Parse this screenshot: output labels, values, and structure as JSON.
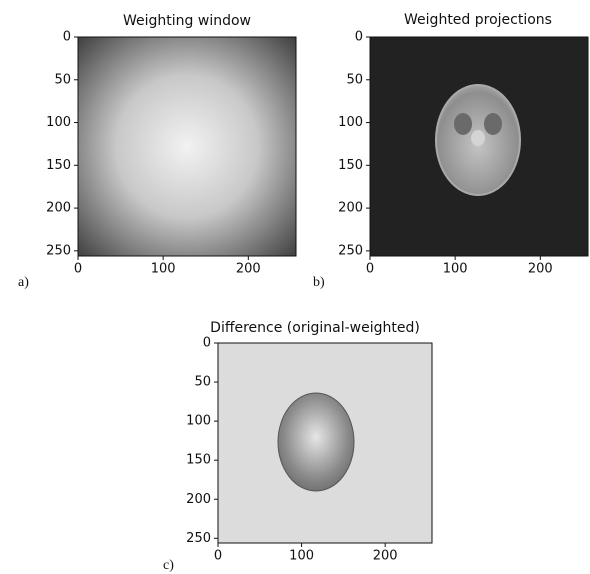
{
  "chart_data": [
    {
      "type": "image",
      "title": "Weighting window",
      "panel_label": "a)",
      "xlim": [
        0,
        256
      ],
      "ylim": [
        256,
        0
      ],
      "xticks": [
        0,
        100,
        200
      ],
      "yticks": [
        0,
        50,
        100,
        150,
        200,
        250
      ]
    },
    {
      "type": "image",
      "title": "Weighted projections",
      "panel_label": "b)",
      "xlim": [
        0,
        256
      ],
      "ylim": [
        256,
        0
      ],
      "xticks": [
        0,
        100,
        200
      ],
      "yticks": [
        0,
        50,
        100,
        150,
        200,
        250
      ]
    },
    {
      "type": "image",
      "title": "Difference (original-weighted)",
      "panel_label": "c)",
      "xlim": [
        0,
        256
      ],
      "ylim": [
        256,
        0
      ],
      "xticks": [
        0,
        100,
        200
      ],
      "yticks": [
        0,
        50,
        100,
        150,
        200,
        250
      ]
    }
  ]
}
